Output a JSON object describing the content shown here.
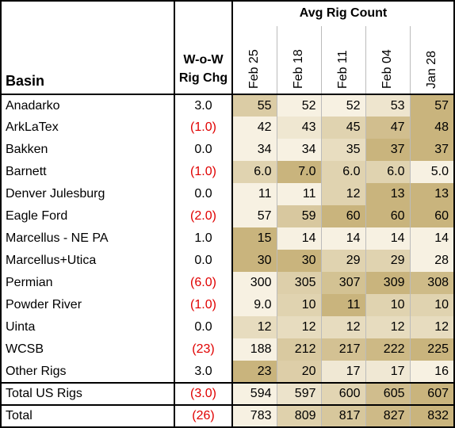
{
  "chart_data": {
    "type": "table",
    "header": {
      "basin": "Basin",
      "wow_line1": "W-o-W",
      "wow_line2": "Rig Chg",
      "group": "Avg Rig Count",
      "dates": [
        "Feb 25",
        "Feb 18",
        "Feb 11",
        "Feb 04",
        "Jan 28"
      ]
    },
    "rows": [
      {
        "basin": "Anadarko",
        "wow": "3.0",
        "neg": false,
        "values": [
          "55",
          "52",
          "52",
          "53",
          "57"
        ]
      },
      {
        "basin": "ArkLaTex",
        "wow": "(1.0)",
        "neg": true,
        "values": [
          "42",
          "43",
          "45",
          "47",
          "48"
        ]
      },
      {
        "basin": "Bakken",
        "wow": "0.0",
        "neg": false,
        "values": [
          "34",
          "34",
          "35",
          "37",
          "37"
        ]
      },
      {
        "basin": "Barnett",
        "wow": "(1.0)",
        "neg": true,
        "values": [
          "6.0",
          "7.0",
          "6.0",
          "6.0",
          "5.0"
        ]
      },
      {
        "basin": "Denver Julesburg",
        "wow": "0.0",
        "neg": false,
        "values": [
          "11",
          "11",
          "12",
          "13",
          "13"
        ]
      },
      {
        "basin": "Eagle Ford",
        "wow": "(2.0)",
        "neg": true,
        "values": [
          "57",
          "59",
          "60",
          "60",
          "60"
        ]
      },
      {
        "basin": "Marcellus - NE PA",
        "wow": "1.0",
        "neg": false,
        "values": [
          "15",
          "14",
          "14",
          "14",
          "14"
        ]
      },
      {
        "basin": "Marcellus+Utica",
        "wow": "0.0",
        "neg": false,
        "values": [
          "30",
          "30",
          "29",
          "29",
          "28"
        ]
      },
      {
        "basin": "Permian",
        "wow": "(6.0)",
        "neg": true,
        "values": [
          "300",
          "305",
          "307",
          "309",
          "308"
        ]
      },
      {
        "basin": "Powder River",
        "wow": "(1.0)",
        "neg": true,
        "values": [
          "9.0",
          "10",
          "11",
          "10",
          "10"
        ]
      },
      {
        "basin": "Uinta",
        "wow": "0.0",
        "neg": false,
        "values": [
          "12",
          "12",
          "12",
          "12",
          "12"
        ]
      },
      {
        "basin": "WCSB",
        "wow": "(23)",
        "neg": true,
        "values": [
          "188",
          "212",
          "217",
          "222",
          "225"
        ]
      },
      {
        "basin": "Other Rigs",
        "wow": "3.0",
        "neg": false,
        "values": [
          "23",
          "20",
          "17",
          "17",
          "16"
        ]
      }
    ],
    "totals": [
      {
        "basin": "Total US Rigs",
        "wow": "(3.0)",
        "neg": true,
        "values": [
          "594",
          "597",
          "600",
          "605",
          "607"
        ]
      },
      {
        "basin": "Total",
        "wow": "(26)",
        "neg": true,
        "values": [
          "783",
          "809",
          "817",
          "827",
          "832"
        ]
      }
    ],
    "colors": {
      "low": "#f7f1e2",
      "high": "#c9b47d",
      "negative": "#e00000"
    }
  }
}
